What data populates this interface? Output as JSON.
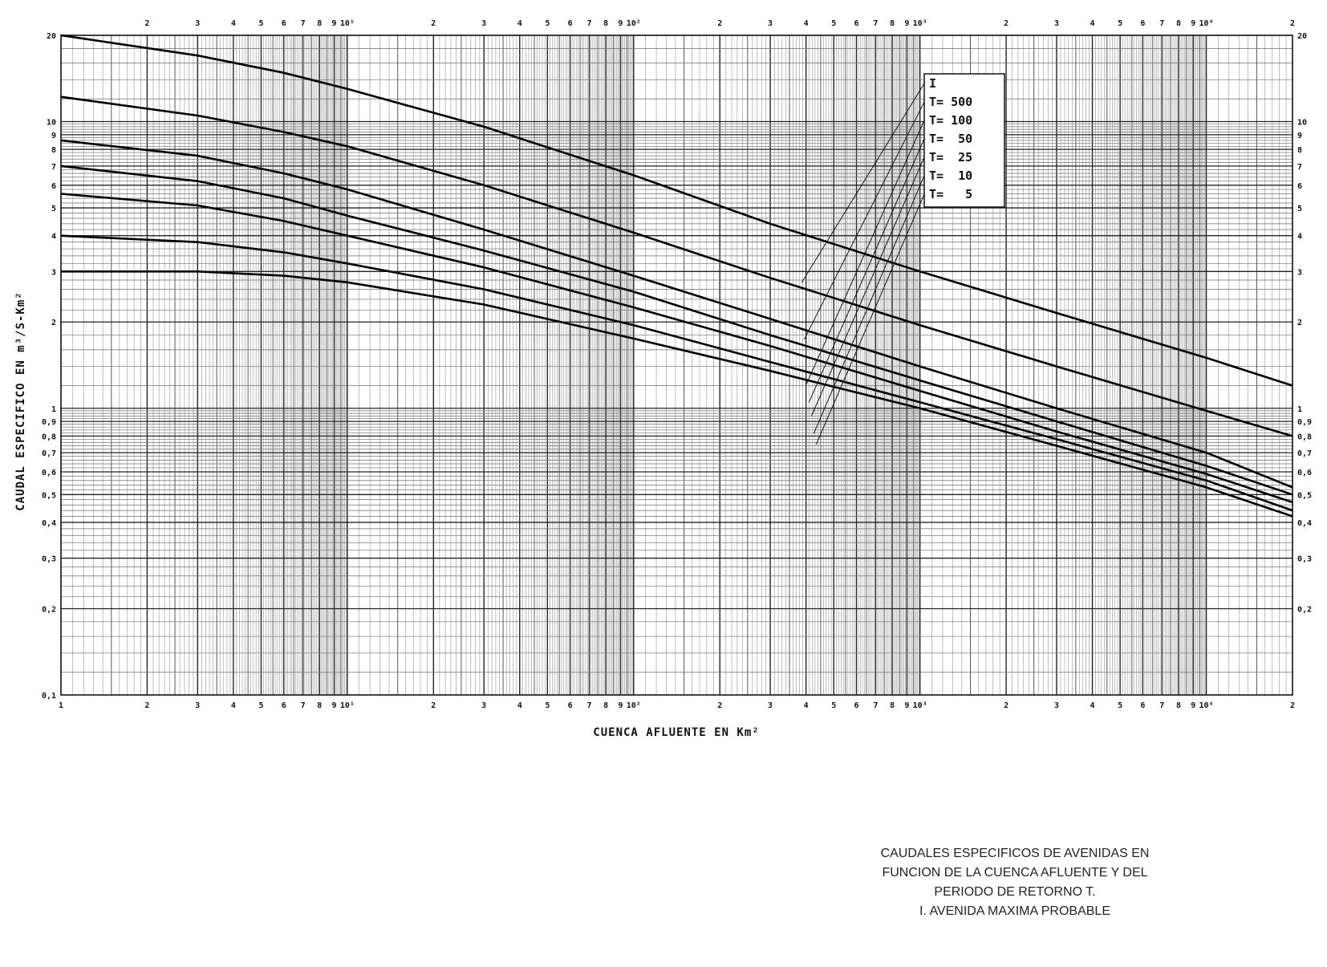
{
  "chart_data": {
    "type": "line",
    "xscale": "log",
    "yscale": "log",
    "xlim": [
      1,
      20000
    ],
    "ylim": [
      0.1,
      20
    ],
    "grid": true,
    "legend_position": "top-right",
    "xlabel": "CUENCA  AFLUENTE  EN  Km²",
    "ylabel": "CAUDAL   ESPECIFICO   EN   m³/S-Km²",
    "x_tick_labels": [
      "1",
      "2",
      "3",
      "4",
      "5",
      "6",
      "7",
      "8",
      "9",
      "10¹",
      "2",
      "3",
      "4",
      "5",
      "6",
      "7",
      "8",
      "9",
      "10²",
      "2",
      "3",
      "4",
      "5",
      "6",
      "7",
      "8",
      "9",
      "10³",
      "2",
      "3",
      "4",
      "5",
      "6",
      "7",
      "8",
      "9",
      "10⁴",
      "2"
    ],
    "y_tick_labels_left": [
      "0,1",
      "0,2",
      "0,3",
      "0,4",
      "0,5",
      "0,6",
      "0,7",
      "0,8",
      "0,9",
      "1",
      "2",
      "3",
      "4",
      "5",
      "6",
      "7",
      "8",
      "9",
      "10",
      "20"
    ],
    "y_tick_labels_right": [
      "0,2",
      "0,3",
      "0,4",
      "0,5",
      "0,6",
      "0,7",
      "0,8",
      "0,9",
      "1",
      "2",
      "3",
      "4",
      "5",
      "6",
      "7",
      "8",
      "9",
      "10",
      "20"
    ],
    "series": [
      {
        "name": "I",
        "x": [
          1,
          3,
          6,
          10,
          30,
          100,
          300,
          1000,
          3000,
          10000,
          20000
        ],
        "y": [
          20,
          17,
          14.8,
          13,
          9.6,
          6.5,
          4.4,
          3.0,
          2.15,
          1.5,
          1.2
        ]
      },
      {
        "name": "T= 500",
        "x": [
          1,
          3,
          6,
          10,
          30,
          100,
          300,
          1000,
          3000,
          10000,
          20000
        ],
        "y": [
          12.2,
          10.5,
          9.2,
          8.2,
          6.0,
          4.1,
          2.85,
          1.95,
          1.4,
          0.98,
          0.8
        ]
      },
      {
        "name": "T= 100",
        "x": [
          1,
          3,
          6,
          10,
          30,
          100,
          300,
          1000,
          3000,
          10000,
          20000
        ],
        "y": [
          8.6,
          7.6,
          6.6,
          5.8,
          4.2,
          2.9,
          2.05,
          1.4,
          1.0,
          0.7,
          0.53
        ]
      },
      {
        "name": "T=  50",
        "x": [
          1,
          3,
          6,
          10,
          30,
          100,
          300,
          1000,
          3000,
          10000,
          20000
        ],
        "y": [
          7.0,
          6.2,
          5.4,
          4.7,
          3.55,
          2.55,
          1.8,
          1.25,
          0.9,
          0.63,
          0.5
        ]
      },
      {
        "name": "T=  25",
        "x": [
          1,
          3,
          6,
          10,
          30,
          100,
          300,
          1000,
          3000,
          10000,
          20000
        ],
        "y": [
          5.6,
          5.1,
          4.5,
          4.0,
          3.1,
          2.25,
          1.65,
          1.15,
          0.83,
          0.59,
          0.47
        ]
      },
      {
        "name": "T=  10",
        "x": [
          1,
          3,
          6,
          10,
          30,
          100,
          300,
          1000,
          3000,
          10000,
          20000
        ],
        "y": [
          4.0,
          3.8,
          3.5,
          3.2,
          2.6,
          1.95,
          1.45,
          1.05,
          0.78,
          0.56,
          0.44
        ]
      },
      {
        "name": "T=   5",
        "x": [
          1,
          3,
          6,
          10,
          30,
          100,
          300,
          1000,
          3000,
          10000,
          20000
        ],
        "y": [
          3.0,
          3.0,
          2.9,
          2.75,
          2.3,
          1.75,
          1.35,
          1.0,
          0.74,
          0.53,
          0.42
        ]
      }
    ]
  },
  "caption": {
    "line1": "CAUDALES ESPECIFICOS DE AVENIDAS EN",
    "line2": "FUNCION DE LA CUENCA AFLUENTE Y DEL",
    "line3": "PERIODO DE RETORNO T.",
    "line4": "I. AVENIDA MAXIMA PROBABLE"
  }
}
